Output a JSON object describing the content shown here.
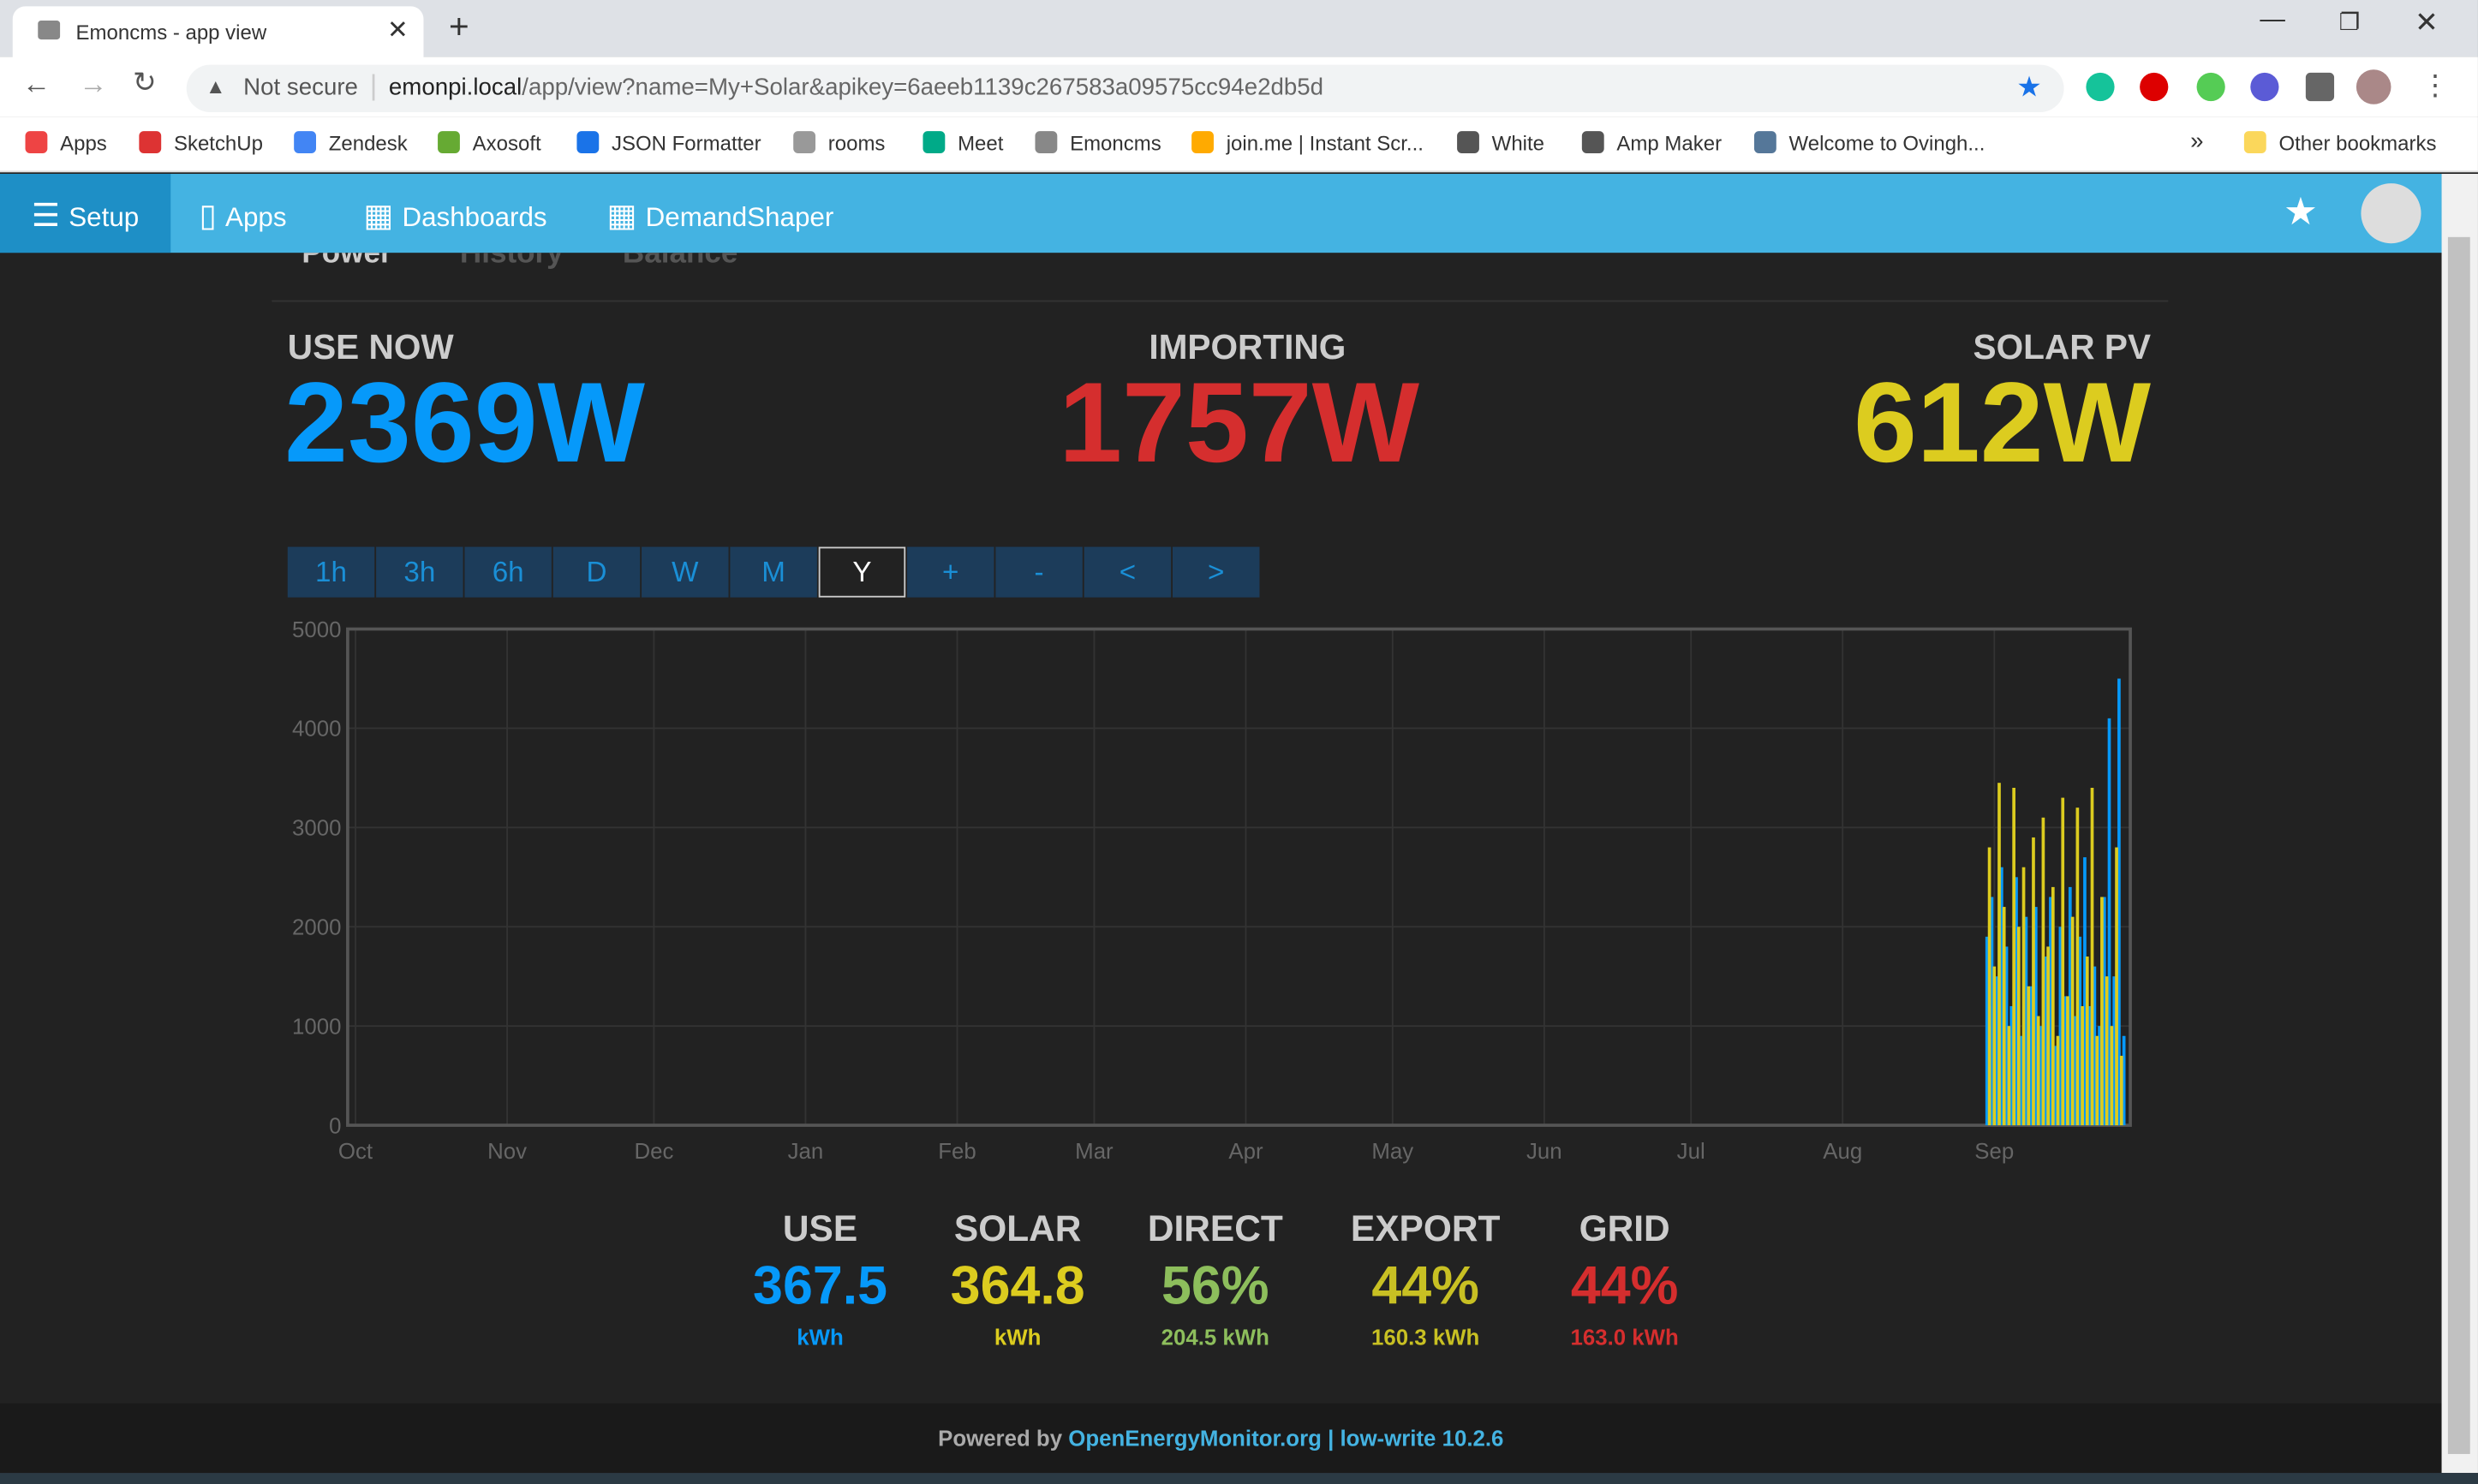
{
  "browser": {
    "tab_title": "Emoncms - app view",
    "security": "Not secure",
    "url_host": "emonpi.local",
    "url_path": "/app/view?name=My+Solar&apikey=6aeeb1139c267583a09575cc94e2db5d",
    "bookmarks": [
      "Apps",
      "SketchUp",
      "Zendesk",
      "Axosoft",
      "JSON Formatter",
      "rooms",
      "Meet",
      "Emoncms",
      "join.me | Instant Scr...",
      "White",
      "Amp Maker",
      "Welcome to Ovingh..."
    ],
    "more": "»",
    "other_bookmarks": "Other bookmarks"
  },
  "nav": {
    "items": [
      "Setup",
      "Apps",
      "Dashboards",
      "DemandShaper"
    ]
  },
  "app": {
    "tabs": [
      "Power",
      "History",
      "Balance"
    ],
    "use_now": {
      "label": "USE NOW",
      "value": "2369W"
    },
    "importing": {
      "label": "IMPORTING",
      "value": "1757W"
    },
    "solar_pv": {
      "label": "SOLAR PV",
      "value": "612W"
    },
    "time_buttons": [
      "1h",
      "3h",
      "6h",
      "D",
      "W",
      "M",
      "Y",
      "+",
      "-",
      "<",
      ">"
    ],
    "selected_button": "Y",
    "chart": {
      "type": "bar",
      "ylim": [
        0,
        5000
      ],
      "yticks": [
        0,
        1000,
        2000,
        3000,
        4000,
        5000
      ],
      "xlim": [
        -1.6,
        362.8
      ],
      "xticks": [
        {
          "value": 0,
          "label": "Oct"
        },
        {
          "value": 31,
          "label": "Nov"
        },
        {
          "value": 61,
          "label": "Dec"
        },
        {
          "value": 92,
          "label": "Jan"
        },
        {
          "value": 123,
          "label": "Feb"
        },
        {
          "value": 151,
          "label": "Mar"
        },
        {
          "value": 182,
          "label": "Apr"
        },
        {
          "value": 212,
          "label": "May"
        },
        {
          "value": 243,
          "label": "Jun"
        },
        {
          "value": 273,
          "label": "Jul"
        },
        {
          "value": 304,
          "label": "Aug"
        },
        {
          "value": 335,
          "label": "Sep"
        }
      ],
      "series": [
        {
          "name": "Use",
          "color": "#0699fa",
          "x": [
            333.5,
            334.5,
            335.5,
            336.5,
            337.5,
            338.5,
            339.5,
            340.5,
            341.5,
            342.5,
            343.5,
            344.5,
            345.5,
            346.5,
            347.5,
            348.5,
            349.5,
            350.5,
            351.5,
            352.5,
            353.5,
            354.5,
            355.5,
            356.5,
            357.5,
            358.5,
            359.5,
            360.5,
            361.5
          ],
          "values": [
            1900,
            2300,
            1500,
            2600,
            1800,
            1200,
            2500,
            900,
            2100,
            1400,
            2200,
            1000,
            1700,
            2300,
            800,
            2000,
            1300,
            2400,
            1100,
            1900,
            2700,
            1200,
            1600,
            1000,
            2300,
            4100,
            1500,
            4500,
            900
          ]
        },
        {
          "name": "Solar",
          "color": "#dccc1f",
          "x": [
            334,
            335,
            336,
            337,
            338,
            339,
            340,
            341,
            342,
            343,
            344,
            345,
            346,
            347,
            348,
            349,
            350,
            351,
            352,
            353,
            354,
            355,
            356,
            357,
            358,
            359,
            360,
            361
          ],
          "values": [
            2800,
            1600,
            3450,
            2200,
            1000,
            3400,
            2000,
            2600,
            1400,
            2900,
            1100,
            3100,
            1800,
            2400,
            900,
            3300,
            1300,
            2100,
            3200,
            1200,
            1700,
            3400,
            900,
            2300,
            1500,
            1000,
            2800,
            700
          ]
        }
      ]
    },
    "totals": [
      {
        "label": "USE",
        "value": "367.5",
        "unit": "kWh"
      },
      {
        "label": "SOLAR",
        "value": "364.8",
        "unit": "kWh"
      },
      {
        "label": "DIRECT",
        "value": "56%",
        "unit": "204.5 kWh"
      },
      {
        "label": "EXPORT",
        "value": "44%",
        "unit": "160.3 kWh"
      },
      {
        "label": "GRID",
        "value": "44%",
        "unit": "163.0 kWh"
      }
    ],
    "footer": {
      "prefix": "Powered by",
      "link": "OpenEnergyMonitor.org",
      "version": "| low-write 10.2.6"
    }
  }
}
